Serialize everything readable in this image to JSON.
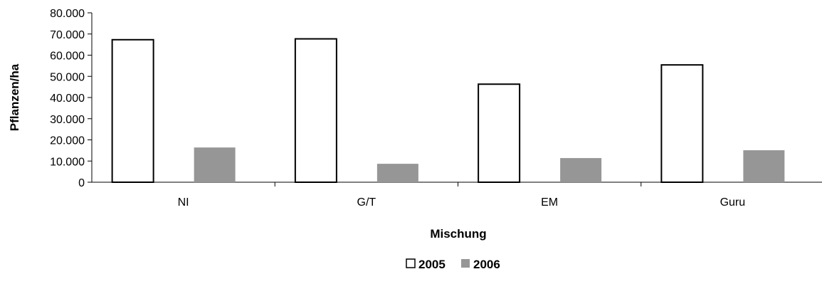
{
  "chart_data": {
    "type": "bar",
    "categories": [
      "NI",
      "G/T",
      "EM",
      "Guru"
    ],
    "series": [
      {
        "name": "2005",
        "values": [
          67300,
          67700,
          46300,
          55400
        ],
        "fill": "#ffffff",
        "stroke": "#000000"
      },
      {
        "name": "2006",
        "values": [
          16400,
          8700,
          11400,
          15100
        ],
        "fill": "#969696",
        "stroke": "#969696"
      }
    ],
    "xlabel": "Mischung",
    "ylabel": "Pflanzen/ha",
    "ylim": [
      0,
      80000
    ],
    "yticks": [
      0,
      10000,
      20000,
      30000,
      40000,
      50000,
      60000,
      70000,
      80000
    ],
    "ytick_labels": [
      "0",
      "10.000",
      "20.000",
      "30.000",
      "40.000",
      "50.000",
      "60.000",
      "70.000",
      "80.000"
    ],
    "grid": false,
    "legend_position": "bottom-center"
  }
}
